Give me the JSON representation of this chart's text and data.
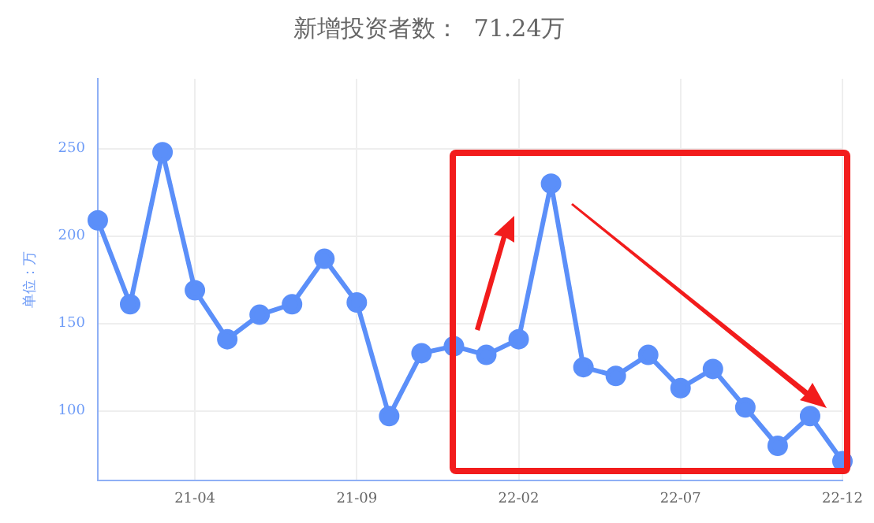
{
  "chart_data": {
    "type": "line",
    "title": "新增投资者数：  71.24万",
    "ylabel": "单位：万",
    "categories": [
      null,
      null,
      null,
      "21-04",
      null,
      null,
      null,
      null,
      "21-09",
      null,
      null,
      null,
      null,
      "22-02",
      null,
      null,
      null,
      null,
      "22-07",
      null,
      null,
      null,
      null,
      "22-12"
    ],
    "series": [
      {
        "color": "#5b8ff9",
        "values": [
          209,
          161,
          248,
          169,
          141,
          155,
          161,
          187,
          162,
          97,
          133,
          137,
          132,
          141,
          230,
          125,
          120,
          132,
          113,
          124,
          102,
          80,
          97,
          71.24
        ]
      }
    ],
    "ylim": [
      60,
      290
    ],
    "yticks": [
      100,
      150,
      200,
      250
    ],
    "grid": true,
    "marker": "circle",
    "line_style": "solid",
    "legend": false
  }
}
